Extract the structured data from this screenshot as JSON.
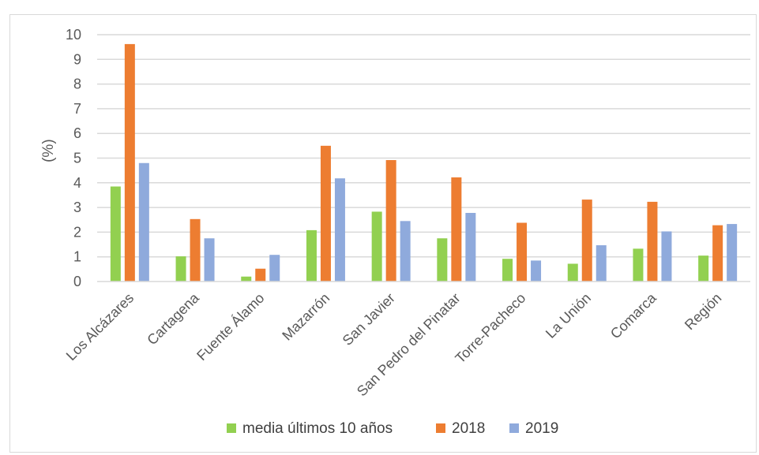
{
  "header_text": "",
  "chart_data": {
    "type": "bar",
    "title": "",
    "xlabel": "",
    "ylabel": "(%)",
    "ylim": [
      0,
      10
    ],
    "yticks": [
      0,
      1,
      2,
      3,
      4,
      5,
      6,
      7,
      8,
      9,
      10
    ],
    "grid": true,
    "legend": "bottom",
    "categories": [
      "Los Alcázares",
      "Cartagena",
      "Fuente Álamo",
      "Mazarrón",
      "San Javier",
      "San Pedro del Pinatar",
      "Torre-Pacheco",
      "La Unión",
      "Comarca",
      "Región"
    ],
    "series": [
      {
        "name": "media últimos 10 años",
        "color": "#92d050",
        "values": [
          3.85,
          1.02,
          0.2,
          2.08,
          2.83,
          1.75,
          0.92,
          0.72,
          1.33,
          1.05
        ]
      },
      {
        "name": "2018",
        "color": "#ed7d31",
        "values": [
          9.62,
          2.53,
          0.52,
          5.5,
          4.92,
          4.22,
          2.38,
          3.32,
          3.23,
          2.28
        ]
      },
      {
        "name": "2019",
        "color": "#8faadc",
        "values": [
          4.8,
          1.75,
          1.08,
          4.18,
          2.45,
          2.78,
          0.85,
          1.47,
          2.03,
          2.33
        ]
      }
    ]
  }
}
